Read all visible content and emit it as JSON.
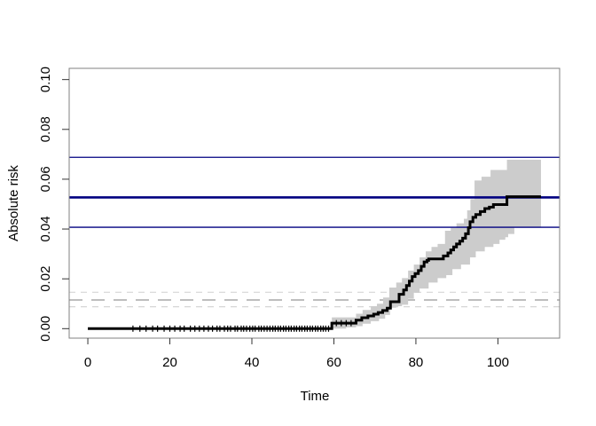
{
  "chart_data": {
    "type": "line",
    "subtype": "step-cumulative-incidence-with-confidence-band",
    "title": "",
    "xlabel": "Time",
    "ylabel": "Absolute risk",
    "xlim": [
      -4.55,
      115.05
    ],
    "ylim": [
      -0.00381,
      0.10451
    ],
    "grid": false,
    "legend": null,
    "xticks": {
      "values": [
        0,
        20,
        40,
        60,
        80,
        100
      ],
      "labels": [
        "0",
        "20",
        "40",
        "60",
        "80",
        "100"
      ]
    },
    "yticks": {
      "values": [
        0,
        0.02,
        0.04,
        0.06,
        0.08,
        0.1
      ],
      "labels": [
        "0.00",
        "0.02",
        "0.04",
        "0.06",
        "0.08",
        "0.10"
      ]
    },
    "colors": {
      "curve": "#000000",
      "band": "#cccccc",
      "navy": "#000080",
      "dash_dark": "#a8a8a8",
      "dash_light": "#d6d6d6",
      "box": "#808080",
      "tick": "#333333",
      "text": "#000000",
      "background": "#ffffff"
    },
    "series": [
      {
        "name": "absolute-risk-step-curve",
        "color": "#000000",
        "width": 3,
        "t_end": 110.5,
        "points": [
          [
            0,
            0
          ],
          [
            59.5,
            0.0022
          ],
          [
            65.4,
            0.0034
          ],
          [
            66.8,
            0.0044
          ],
          [
            68.3,
            0.0051
          ],
          [
            69.7,
            0.0058
          ],
          [
            70.8,
            0.0065
          ],
          [
            71.9,
            0.0073
          ],
          [
            73.0,
            0.0082
          ],
          [
            73.8,
            0.0108
          ],
          [
            75.9,
            0.0138
          ],
          [
            77.0,
            0.0155
          ],
          [
            77.7,
            0.0173
          ],
          [
            78.4,
            0.0191
          ],
          [
            79.1,
            0.0209
          ],
          [
            79.8,
            0.0221
          ],
          [
            80.6,
            0.0233
          ],
          [
            81.3,
            0.025
          ],
          [
            82.0,
            0.0268
          ],
          [
            82.7,
            0.0274
          ],
          [
            83.1,
            0.028
          ],
          [
            86.7,
            0.0292
          ],
          [
            87.8,
            0.0304
          ],
          [
            88.5,
            0.0316
          ],
          [
            89.2,
            0.0328
          ],
          [
            89.9,
            0.034
          ],
          [
            90.7,
            0.0351
          ],
          [
            91.4,
            0.0363
          ],
          [
            92.1,
            0.0381
          ],
          [
            92.8,
            0.0405
          ],
          [
            93.2,
            0.0429
          ],
          [
            93.9,
            0.0447
          ],
          [
            94.6,
            0.0458
          ],
          [
            95.7,
            0.047
          ],
          [
            96.8,
            0.0482
          ],
          [
            97.9,
            0.0488
          ],
          [
            98.9,
            0.0498
          ],
          [
            102.2,
            0.053
          ],
          [
            110.5,
            0.053
          ]
        ]
      }
    ],
    "confidence_band": {
      "name": "pointwise-confidence-band",
      "color": "#cccccc",
      "t_end": 110.5,
      "upper": [
        [
          59.5,
          0.0045
        ],
        [
          65.4,
          0.006
        ],
        [
          67,
          0.0075
        ],
        [
          69,
          0.009
        ],
        [
          70.5,
          0.01
        ],
        [
          72,
          0.0125
        ],
        [
          73.5,
          0.0165
        ],
        [
          75.2,
          0.0185
        ],
        [
          76.6,
          0.0203
        ],
        [
          78.1,
          0.0233
        ],
        [
          79.5,
          0.0257
        ],
        [
          80.9,
          0.0286
        ],
        [
          82.4,
          0.031
        ],
        [
          83.8,
          0.0328
        ],
        [
          85.3,
          0.034
        ],
        [
          87.1,
          0.0393
        ],
        [
          88.5,
          0.0405
        ],
        [
          89.9,
          0.0423
        ],
        [
          91.7,
          0.0441
        ],
        [
          92.5,
          0.0475
        ],
        [
          93.3,
          0.052
        ],
        [
          94.3,
          0.0595
        ],
        [
          96,
          0.061
        ],
        [
          98.2,
          0.0637
        ],
        [
          102.2,
          0.0678
        ]
      ],
      "lower": [
        [
          59.5,
          0
        ],
        [
          63,
          0.0005
        ],
        [
          65.4,
          0.001
        ],
        [
          67,
          0.002
        ],
        [
          69,
          0.003
        ],
        [
          71,
          0.004
        ],
        [
          72.5,
          0.0055
        ],
        [
          73.7,
          0.0084
        ],
        [
          75.2,
          0.009
        ],
        [
          76.6,
          0.0096
        ],
        [
          78.1,
          0.012
        ],
        [
          79.5,
          0.0144
        ],
        [
          80.9,
          0.0161
        ],
        [
          83.1,
          0.0185
        ],
        [
          85.3,
          0.0203
        ],
        [
          87.4,
          0.0215
        ],
        [
          88.9,
          0.0239
        ],
        [
          91,
          0.0257
        ],
        [
          93.2,
          0.0286
        ],
        [
          94.6,
          0.031
        ],
        [
          96.8,
          0.0328
        ],
        [
          98.9,
          0.034
        ],
        [
          100.4,
          0.0357
        ],
        [
          101.8,
          0.0367
        ],
        [
          102.5,
          0.038
        ],
        [
          104,
          0.0405
        ]
      ]
    },
    "reference_lines": [
      {
        "name": "hline-navy-upper",
        "value": 0.0688,
        "color": "#000080",
        "width": 1.3,
        "dash": null
      },
      {
        "name": "hline-navy-estimate",
        "value": 0.0527,
        "color": "#000080",
        "width": 2.6,
        "dash": null
      },
      {
        "name": "hline-navy-lower",
        "value": 0.0407,
        "color": "#000080",
        "width": 1.3,
        "dash": null
      },
      {
        "name": "hline-gray-upper",
        "value": 0.0146,
        "color": "#d6d6d6",
        "width": 1.2,
        "dash": "7,6"
      },
      {
        "name": "hline-gray-estimate",
        "value": 0.0115,
        "color": "#a8a8a8",
        "width": 1.5,
        "dash": "15,10"
      },
      {
        "name": "hline-gray-lower",
        "value": 0.0088,
        "color": "#d6d6d6",
        "width": 1.2,
        "dash": "7,6"
      }
    ],
    "censoring_ticks": {
      "height": 7,
      "width": 1.2,
      "times": [
        11,
        12.7,
        14.2,
        15.8,
        17,
        18.6,
        20,
        21.2,
        22.5,
        23.5,
        25,
        26.1,
        27.2,
        28.3,
        29.4,
        30.4,
        31.5,
        32.2,
        33.3,
        34.1,
        34.8,
        35.9,
        36.5,
        37.4,
        38,
        38.7,
        39.5,
        40.2,
        40.8,
        41.7,
        42.3,
        43,
        43.7,
        44.4,
        45.1,
        45.7,
        46.4,
        47,
        47.7,
        48.3,
        49,
        49.6,
        50.3,
        50.9,
        51.6,
        52.2,
        52.9,
        53.5,
        54.2,
        54.8,
        55.5,
        56.1,
        56.8,
        57.4,
        58,
        58.7,
        60.6,
        61.8,
        63,
        64.2
      ]
    }
  }
}
